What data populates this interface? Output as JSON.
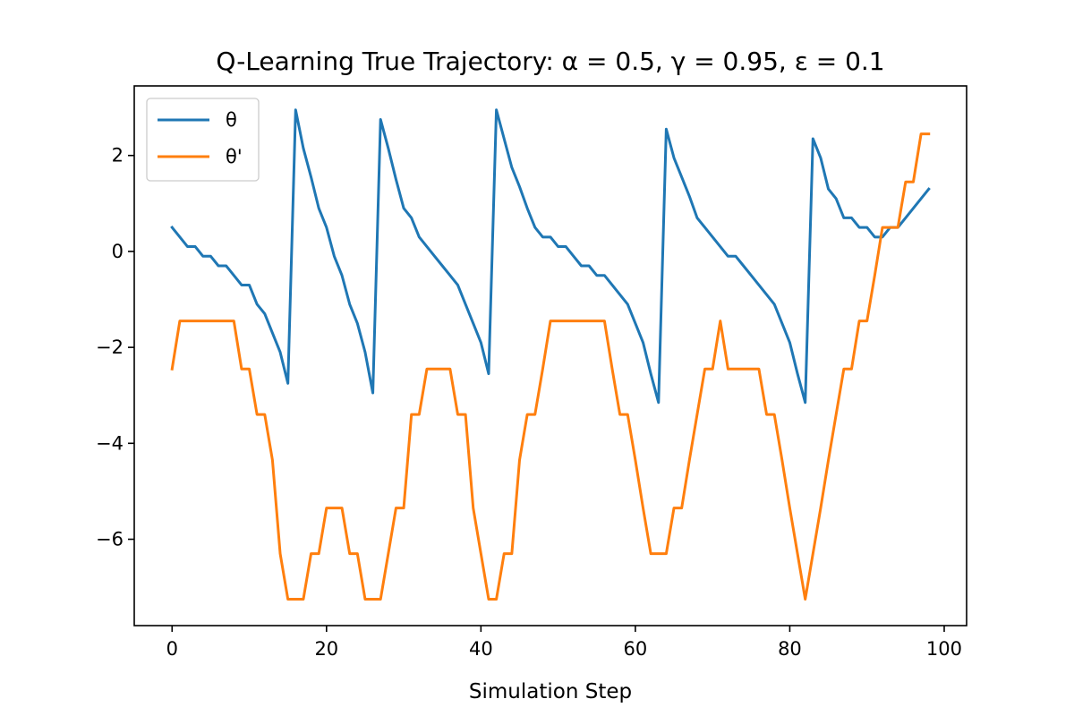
{
  "chart_data": {
    "type": "line",
    "title": "Q-Learning True Trajectory: α = 0.5, γ = 0.95, ε = 0.1",
    "xlabel": "Simulation Step",
    "ylabel": "",
    "xlim": [
      -4.9,
      102.9
    ],
    "ylim": [
      -7.8,
      3.45
    ],
    "xticks": [
      0,
      20,
      40,
      60,
      80,
      100
    ],
    "yticks": [
      -6,
      -4,
      -2,
      0,
      2
    ],
    "xtick_labels": [
      "0",
      "20",
      "40",
      "60",
      "80",
      "100"
    ],
    "ytick_labels": [
      "−6",
      "−4",
      "−2",
      "0",
      "2"
    ],
    "grid": false,
    "legend": "upper-left",
    "series": [
      {
        "name": "θ",
        "color": "#1f77b4",
        "values": [
          0.5,
          0.3,
          0.1,
          0.1,
          -0.1,
          -0.1,
          -0.3,
          -0.3,
          -0.5,
          -0.7,
          -0.7,
          -1.1,
          -1.3,
          -1.7,
          -2.1,
          -2.75,
          2.95,
          2.15,
          1.55,
          0.9,
          0.5,
          -0.1,
          -0.5,
          -1.1,
          -1.5,
          -2.1,
          -2.95,
          2.75,
          2.15,
          1.5,
          0.9,
          0.7,
          0.3,
          0.1,
          -0.1,
          -0.3,
          -0.5,
          -0.7,
          -1.1,
          -1.5,
          -1.9,
          -2.55,
          2.95,
          2.35,
          1.75,
          1.35,
          0.9,
          0.5,
          0.3,
          0.3,
          0.1,
          0.1,
          -0.1,
          -0.3,
          -0.3,
          -0.5,
          -0.5,
          -0.7,
          -0.9,
          -1.1,
          -1.5,
          -1.9,
          -2.55,
          -3.15,
          2.55,
          1.95,
          1.55,
          1.15,
          0.7,
          0.5,
          0.3,
          0.1,
          -0.1,
          -0.1,
          -0.3,
          -0.5,
          -0.7,
          -0.9,
          -1.1,
          -1.5,
          -1.9,
          -2.55,
          -3.15,
          2.35,
          1.95,
          1.3,
          1.1,
          0.7,
          0.7,
          0.5,
          0.5,
          0.3,
          0.3,
          0.5,
          0.5,
          0.7,
          0.9,
          1.1,
          1.3
        ]
      },
      {
        "name": "θ'",
        "color": "#ff7f0e",
        "values": [
          -2.45,
          -1.45,
          -1.45,
          -1.45,
          -1.45,
          -1.45,
          -1.45,
          -1.45,
          -1.45,
          -2.45,
          -2.45,
          -3.4,
          -3.4,
          -4.35,
          -6.3,
          -7.25,
          -7.25,
          -7.25,
          -6.3,
          -6.3,
          -5.35,
          -5.35,
          -5.35,
          -6.3,
          -6.3,
          -7.25,
          -7.25,
          -7.25,
          -6.3,
          -5.35,
          -5.35,
          -3.4,
          -3.4,
          -2.45,
          -2.45,
          -2.45,
          -2.45,
          -3.4,
          -3.4,
          -5.35,
          -6.3,
          -7.25,
          -7.25,
          -6.3,
          -6.3,
          -4.35,
          -3.4,
          -3.4,
          -2.45,
          -1.45,
          -1.45,
          -1.45,
          -1.45,
          -1.45,
          -1.45,
          -1.45,
          -1.45,
          -2.45,
          -3.4,
          -3.4,
          -4.35,
          -5.35,
          -6.3,
          -6.3,
          -6.3,
          -5.35,
          -5.35,
          -4.35,
          -3.4,
          -2.45,
          -2.45,
          -1.45,
          -2.45,
          -2.45,
          -2.45,
          -2.45,
          -2.45,
          -3.4,
          -3.4,
          -4.35,
          -5.35,
          -6.3,
          -7.25,
          -6.3,
          -5.35,
          -4.35,
          -3.4,
          -2.45,
          -2.45,
          -1.45,
          -1.45,
          -0.5,
          0.5,
          0.5,
          0.5,
          1.45,
          1.45,
          2.45,
          2.45
        ]
      }
    ]
  }
}
